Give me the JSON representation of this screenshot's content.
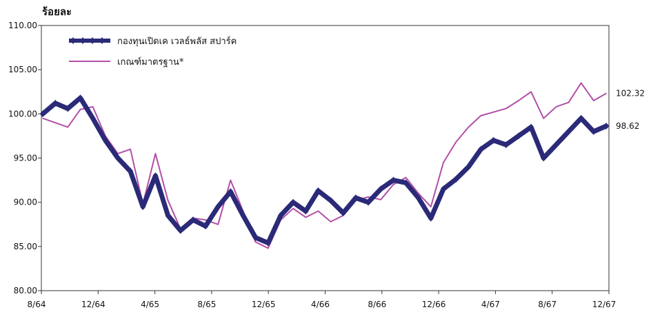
{
  "chart_data": {
    "type": "line",
    "unit_label": "ร้อยละ",
    "ylim": [
      80,
      110
    ],
    "y_ticks": [
      "80.00",
      "85.00",
      "90.00",
      "95.00",
      "100.00",
      "105.00",
      "110.00"
    ],
    "x_ticks": [
      "8/64",
      "12/64",
      "4/65",
      "8/65",
      "12/65",
      "4/66",
      "8/66",
      "12/66",
      "4/67",
      "8/67",
      "12/67"
    ],
    "grid": false,
    "legend_position": "top-left",
    "series": [
      {
        "name": "กองทุนเปิดเค เวลธ์พลัส สปาร์ค",
        "color": "#2b2a78",
        "end_label": "98.62",
        "values": [
          100.0,
          101.2,
          100.6,
          101.8,
          99.5,
          97.0,
          95.0,
          93.5,
          89.5,
          93.0,
          88.5,
          86.8,
          88.0,
          87.3,
          89.5,
          91.2,
          88.5,
          86.0,
          85.4,
          88.5,
          90.0,
          89.0,
          91.3,
          90.2,
          88.8,
          90.5,
          90.0,
          91.5,
          92.5,
          92.2,
          90.5,
          88.2,
          91.5,
          92.6,
          94.0,
          96.0,
          97.0,
          96.5,
          97.5,
          98.5,
          95.0,
          96.5,
          98.0,
          99.5,
          98.0,
          98.62
        ]
      },
      {
        "name": "เกณฑ์มาตรฐาน*",
        "color": "#b24ea6",
        "end_label": "102.32",
        "values": [
          99.5,
          99.0,
          98.5,
          100.5,
          100.8,
          97.5,
          95.5,
          96.0,
          89.8,
          95.5,
          90.2,
          87.0,
          88.2,
          88.0,
          87.5,
          92.5,
          89.0,
          85.5,
          84.8,
          88.0,
          89.3,
          88.3,
          89.0,
          87.8,
          88.5,
          90.2,
          90.6,
          90.3,
          92.0,
          92.8,
          91.0,
          89.5,
          94.5,
          96.8,
          98.5,
          99.8,
          100.2,
          100.6,
          101.5,
          102.5,
          99.5,
          100.8,
          101.3,
          103.5,
          101.5,
          102.32
        ]
      }
    ]
  }
}
